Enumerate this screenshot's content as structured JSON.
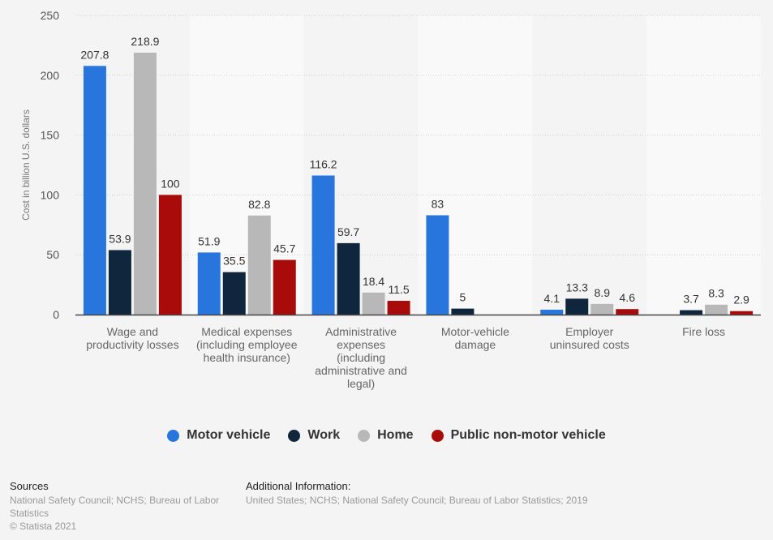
{
  "chart_data": {
    "type": "bar",
    "title": "",
    "xlabel": "",
    "ylabel": "Cost in billion U.S. dollars",
    "ylim": [
      0,
      250
    ],
    "yticks": [
      0,
      50,
      100,
      150,
      200,
      250
    ],
    "grid": true,
    "legend_position": "bottom",
    "categories": [
      "Wage and productivity losses",
      "Medical expenses (including employee health insurance)",
      "Administrative expenses (including administrative and legal)",
      "Motor-vehicle damage",
      "Employer uninsured costs",
      "Fire loss"
    ],
    "category_lines": [
      [
        "Wage and",
        "productivity losses"
      ],
      [
        "Medical expenses",
        "(including employee",
        "health insurance)"
      ],
      [
        "Administrative",
        "expenses",
        "(including",
        "administrative and",
        "legal)"
      ],
      [
        "Motor-vehicle",
        "damage"
      ],
      [
        "Employer",
        "uninsured costs"
      ],
      [
        "Fire loss"
      ]
    ],
    "series": [
      {
        "name": "Motor vehicle",
        "color": "#2876dd",
        "values": [
          207.8,
          51.9,
          116.2,
          83,
          4.1,
          null
        ]
      },
      {
        "name": "Work",
        "color": "#10263d",
        "values": [
          53.9,
          35.5,
          59.7,
          5,
          13.3,
          3.7
        ]
      },
      {
        "name": "Home",
        "color": "#b8b8b8",
        "values": [
          218.9,
          82.8,
          18.4,
          null,
          8.9,
          8.3
        ]
      },
      {
        "name": "Public non-motor vehicle",
        "color": "#a90b0b",
        "values": [
          100,
          45.7,
          11.5,
          null,
          4.6,
          2.9
        ]
      }
    ]
  },
  "legend": {
    "items": [
      {
        "label": "Motor vehicle",
        "color": "#2876dd"
      },
      {
        "label": "Work",
        "color": "#10263d"
      },
      {
        "label": "Home",
        "color": "#b8b8b8"
      },
      {
        "label": "Public non-motor vehicle",
        "color": "#a90b0b"
      }
    ]
  },
  "footer": {
    "sources_title": "Sources",
    "sources_text": "National Safety Council; NCHS; Bureau of Labor Statistics",
    "copyright": "© Statista 2021",
    "info_title": "Additional Information:",
    "info_text": "United States; NCHS; National Safety Council; Bureau of Labor Statistics; 2019"
  }
}
